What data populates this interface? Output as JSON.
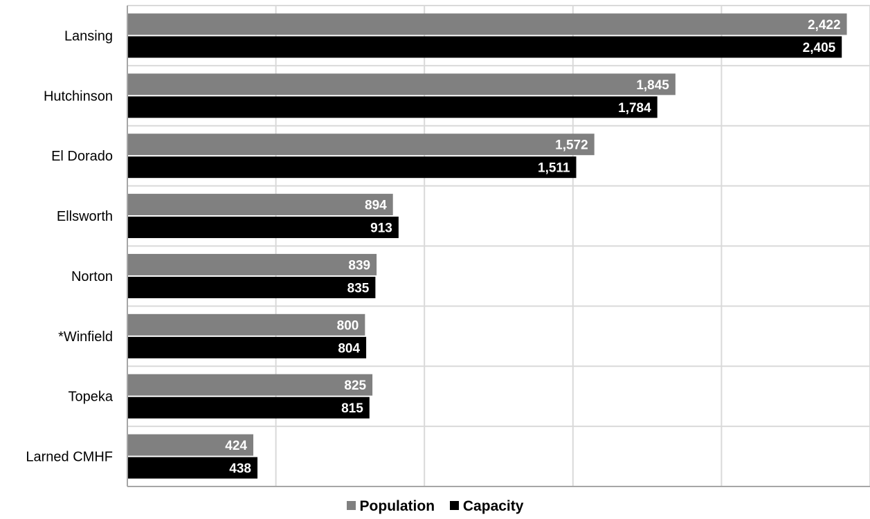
{
  "chart_data": {
    "type": "bar",
    "orientation": "horizontal",
    "categories": [
      "Lansing",
      "Hutchinson",
      "El Dorado",
      "Ellsworth",
      "Norton",
      "*Winfield",
      "Topeka",
      "Larned CMHF"
    ],
    "series": [
      {
        "name": "Population",
        "color": "#808080",
        "values": [
          2422,
          1845,
          1572,
          894,
          839,
          800,
          825,
          424
        ]
      },
      {
        "name": "Capacity",
        "color": "#000000",
        "values": [
          2405,
          1784,
          1511,
          913,
          835,
          804,
          815,
          438
        ]
      }
    ],
    "value_labels": {
      "Population": [
        "2,422",
        "1,845",
        "1,572",
        "894",
        "839",
        "800",
        "825",
        "424"
      ],
      "Capacity": [
        "2,405",
        "1,784",
        "1,511",
        "913",
        "835",
        "804",
        "815",
        "438"
      ]
    },
    "xlim": [
      0,
      2500
    ],
    "grid": true,
    "x_tick_labels_shown": false,
    "legend_position": "bottom"
  }
}
